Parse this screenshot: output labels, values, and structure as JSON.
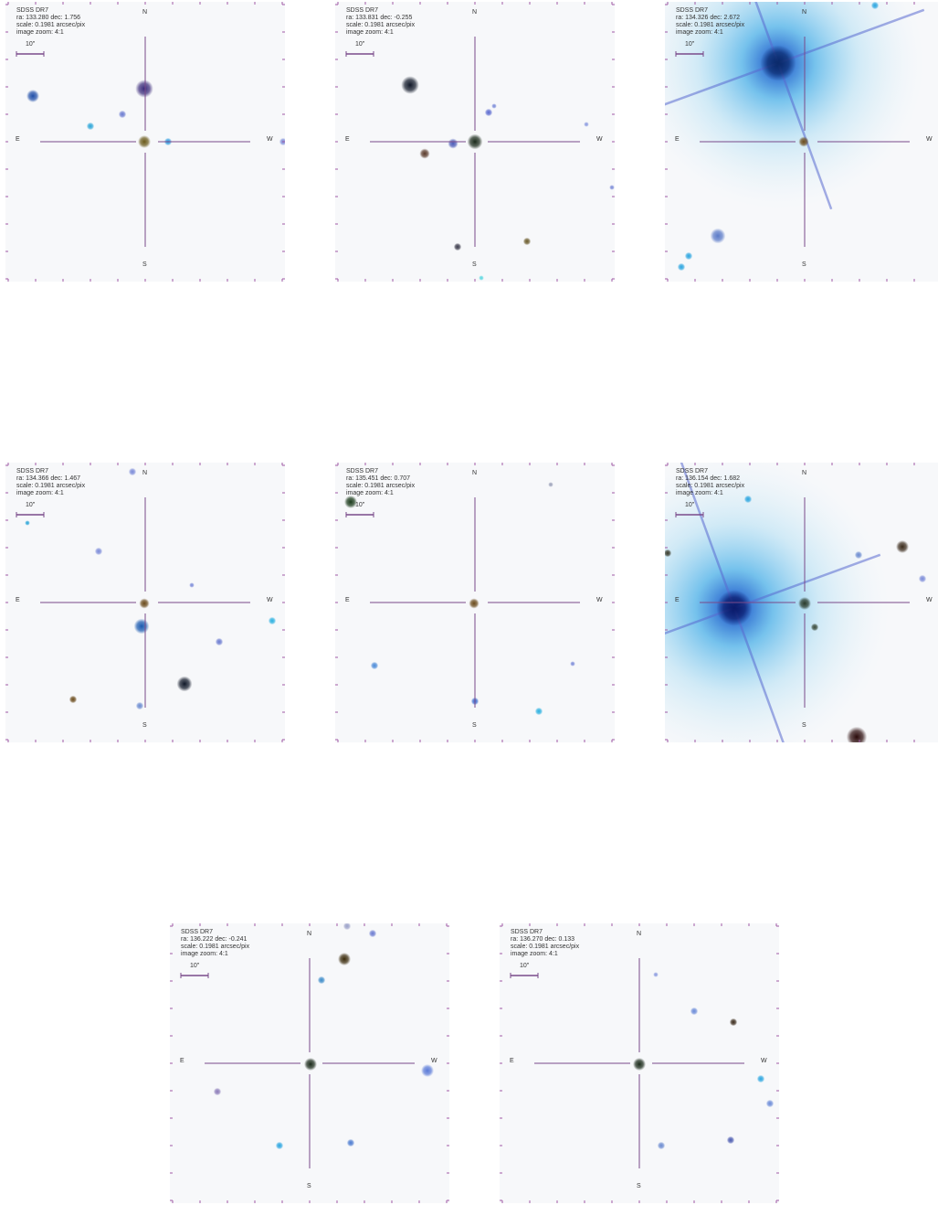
{
  "survey": "SDSS DR7",
  "scale_bar_label": "10\"",
  "directions": {
    "n": "N",
    "s": "S",
    "e": "E",
    "w": "W"
  },
  "colors": {
    "crosshair": "#7a4a8a",
    "tick": "#a05aa5",
    "background": "#f7f8fa"
  },
  "panels": [
    {
      "ra_dec": "ra: 133.280 dec: 1.756",
      "scale": "scale: 0.1981 arcsec/pix",
      "zoom": "image zoom: 4:1"
    },
    {
      "ra_dec": "ra: 133.831 dec: -0.255",
      "scale": "scale: 0.1981 arcsec/pix",
      "zoom": "image zoom: 4:1"
    },
    {
      "ra_dec": "ra: 134.326 dec: 2.672",
      "scale": "scale: 0.1981 arcsec/pix",
      "zoom": "image zoom: 4:1"
    },
    {
      "ra_dec": "ra: 134.366 dec: 1.467",
      "scale": "scale: 0.1981 arcsec/pix",
      "zoom": "image zoom: 4:1"
    },
    {
      "ra_dec": "ra: 135.451 dec: 0.707",
      "scale": "scale: 0.1981 arcsec/pix",
      "zoom": "image zoom: 4:1"
    },
    {
      "ra_dec": "ra: 136.154 dec: 1.682",
      "scale": "scale: 0.1981 arcsec/pix",
      "zoom": "image zoom: 4:1"
    },
    {
      "ra_dec": "ra: 136.222 dec: -0.241",
      "scale": "scale: 0.1981 arcsec/pix",
      "zoom": "image zoom: 4:1"
    },
    {
      "ra_dec": "ra: 136.270 dec: 0.133",
      "scale": "scale: 0.1981 arcsec/pix",
      "zoom": "image zoom: 4:1"
    }
  ]
}
